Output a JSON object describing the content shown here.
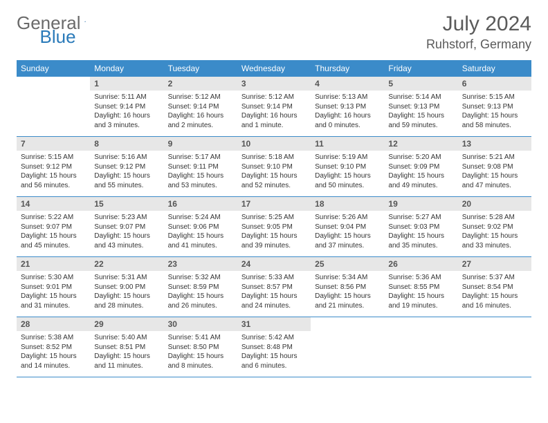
{
  "brand": {
    "part1": "General",
    "part2": "Blue"
  },
  "title": "July 2024",
  "subtitle": "Ruhstorf, Germany",
  "colors": {
    "header_bg": "#3b8bc9",
    "header_text": "#ffffff",
    "daynum_bg": "#e7e7e7",
    "daynum_text": "#555555",
    "body_text": "#333333",
    "divider": "#3b8bc9",
    "title_text": "#5a5a5a"
  },
  "days_of_week": [
    "Sunday",
    "Monday",
    "Tuesday",
    "Wednesday",
    "Thursday",
    "Friday",
    "Saturday"
  ],
  "weeks": [
    [
      null,
      {
        "n": "1",
        "sr": "5:11 AM",
        "ss": "9:14 PM",
        "dl": "16 hours and 3 minutes."
      },
      {
        "n": "2",
        "sr": "5:12 AM",
        "ss": "9:14 PM",
        "dl": "16 hours and 2 minutes."
      },
      {
        "n": "3",
        "sr": "5:12 AM",
        "ss": "9:14 PM",
        "dl": "16 hours and 1 minute."
      },
      {
        "n": "4",
        "sr": "5:13 AM",
        "ss": "9:13 PM",
        "dl": "16 hours and 0 minutes."
      },
      {
        "n": "5",
        "sr": "5:14 AM",
        "ss": "9:13 PM",
        "dl": "15 hours and 59 minutes."
      },
      {
        "n": "6",
        "sr": "5:15 AM",
        "ss": "9:13 PM",
        "dl": "15 hours and 58 minutes."
      }
    ],
    [
      {
        "n": "7",
        "sr": "5:15 AM",
        "ss": "9:12 PM",
        "dl": "15 hours and 56 minutes."
      },
      {
        "n": "8",
        "sr": "5:16 AM",
        "ss": "9:12 PM",
        "dl": "15 hours and 55 minutes."
      },
      {
        "n": "9",
        "sr": "5:17 AM",
        "ss": "9:11 PM",
        "dl": "15 hours and 53 minutes."
      },
      {
        "n": "10",
        "sr": "5:18 AM",
        "ss": "9:10 PM",
        "dl": "15 hours and 52 minutes."
      },
      {
        "n": "11",
        "sr": "5:19 AM",
        "ss": "9:10 PM",
        "dl": "15 hours and 50 minutes."
      },
      {
        "n": "12",
        "sr": "5:20 AM",
        "ss": "9:09 PM",
        "dl": "15 hours and 49 minutes."
      },
      {
        "n": "13",
        "sr": "5:21 AM",
        "ss": "9:08 PM",
        "dl": "15 hours and 47 minutes."
      }
    ],
    [
      {
        "n": "14",
        "sr": "5:22 AM",
        "ss": "9:07 PM",
        "dl": "15 hours and 45 minutes."
      },
      {
        "n": "15",
        "sr": "5:23 AM",
        "ss": "9:07 PM",
        "dl": "15 hours and 43 minutes."
      },
      {
        "n": "16",
        "sr": "5:24 AM",
        "ss": "9:06 PM",
        "dl": "15 hours and 41 minutes."
      },
      {
        "n": "17",
        "sr": "5:25 AM",
        "ss": "9:05 PM",
        "dl": "15 hours and 39 minutes."
      },
      {
        "n": "18",
        "sr": "5:26 AM",
        "ss": "9:04 PM",
        "dl": "15 hours and 37 minutes."
      },
      {
        "n": "19",
        "sr": "5:27 AM",
        "ss": "9:03 PM",
        "dl": "15 hours and 35 minutes."
      },
      {
        "n": "20",
        "sr": "5:28 AM",
        "ss": "9:02 PM",
        "dl": "15 hours and 33 minutes."
      }
    ],
    [
      {
        "n": "21",
        "sr": "5:30 AM",
        "ss": "9:01 PM",
        "dl": "15 hours and 31 minutes."
      },
      {
        "n": "22",
        "sr": "5:31 AM",
        "ss": "9:00 PM",
        "dl": "15 hours and 28 minutes."
      },
      {
        "n": "23",
        "sr": "5:32 AM",
        "ss": "8:59 PM",
        "dl": "15 hours and 26 minutes."
      },
      {
        "n": "24",
        "sr": "5:33 AM",
        "ss": "8:57 PM",
        "dl": "15 hours and 24 minutes."
      },
      {
        "n": "25",
        "sr": "5:34 AM",
        "ss": "8:56 PM",
        "dl": "15 hours and 21 minutes."
      },
      {
        "n": "26",
        "sr": "5:36 AM",
        "ss": "8:55 PM",
        "dl": "15 hours and 19 minutes."
      },
      {
        "n": "27",
        "sr": "5:37 AM",
        "ss": "8:54 PM",
        "dl": "15 hours and 16 minutes."
      }
    ],
    [
      {
        "n": "28",
        "sr": "5:38 AM",
        "ss": "8:52 PM",
        "dl": "15 hours and 14 minutes."
      },
      {
        "n": "29",
        "sr": "5:40 AM",
        "ss": "8:51 PM",
        "dl": "15 hours and 11 minutes."
      },
      {
        "n": "30",
        "sr": "5:41 AM",
        "ss": "8:50 PM",
        "dl": "15 hours and 8 minutes."
      },
      {
        "n": "31",
        "sr": "5:42 AM",
        "ss": "8:48 PM",
        "dl": "15 hours and 6 minutes."
      },
      null,
      null,
      null
    ]
  ]
}
